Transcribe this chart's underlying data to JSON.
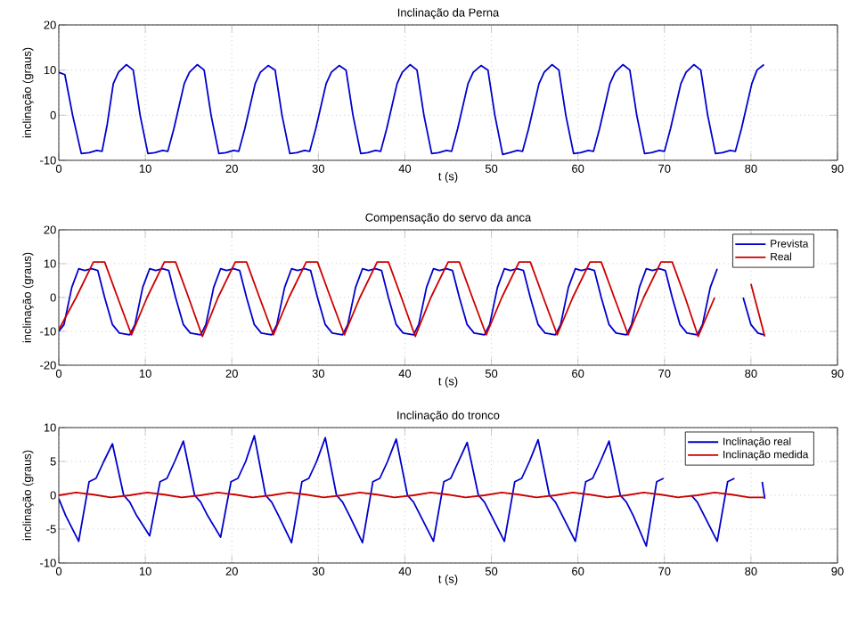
{
  "chart_data": [
    {
      "type": "line",
      "title": "Inclinação da Perna",
      "xlabel": "t (s)",
      "ylabel": "inclinação (graus)",
      "xlim": [
        0,
        90
      ],
      "ylim": [
        -10,
        20
      ],
      "xticks": [
        0,
        10,
        20,
        30,
        40,
        50,
        60,
        70,
        80,
        90
      ],
      "yticks": [
        -10,
        0,
        10,
        20
      ],
      "grid": true,
      "legend": false,
      "series": [
        {
          "color": "#0000cc",
          "x": [
            0,
            0.7,
            1.6,
            2.6,
            3.5,
            4.4,
            5.0,
            5.6,
            6.3,
            6.9,
            7.8,
            8.6,
            9.4,
            10.3,
            11.1,
            12.0,
            12.6,
            13.3,
            14.5,
            15.1,
            16.0,
            16.8,
            17.6,
            18.5,
            19.3,
            20.2,
            20.8,
            21.5,
            22.7,
            23.3,
            24.2,
            25.0,
            25.8,
            26.7,
            27.5,
            28.4,
            29.0,
            29.7,
            30.9,
            31.5,
            32.4,
            33.2,
            34.0,
            34.9,
            35.7,
            36.6,
            37.2,
            37.9,
            39.1,
            39.7,
            40.6,
            41.4,
            42.2,
            43.1,
            43.9,
            44.8,
            45.4,
            46.1,
            47.3,
            47.9,
            48.8,
            49.6,
            50.4,
            51.3,
            52.1,
            53.0,
            53.6,
            54.3,
            55.5,
            56.1,
            57.0,
            57.8,
            58.6,
            59.5,
            60.3,
            61.2,
            61.8,
            62.5,
            63.7,
            64.3,
            65.2,
            66.0,
            66.8,
            67.7,
            68.5,
            69.4,
            70.0,
            70.7,
            71.9,
            72.5,
            73.4,
            74.2,
            75.0,
            75.9,
            76.7,
            77.6,
            78.2,
            78.9,
            80.1,
            80.7,
            81.5
          ],
          "values": [
            9.5,
            9,
            0,
            -8.5,
            -8.3,
            -7.8,
            -8,
            -2,
            7,
            9.5,
            11.2,
            10,
            0,
            -8.5,
            -8.3,
            -7.8,
            -8,
            -3,
            7,
            9.5,
            11.2,
            10,
            0,
            -8.5,
            -8.3,
            -7.8,
            -8,
            -3,
            7,
            9.5,
            11,
            10,
            0,
            -8.5,
            -8.3,
            -7.8,
            -8,
            -3,
            7,
            9.5,
            11,
            10,
            0,
            -8.5,
            -8.3,
            -7.8,
            -8,
            -3,
            7,
            9.5,
            11.2,
            10,
            0,
            -8.5,
            -8.3,
            -7.8,
            -8,
            -3,
            7,
            9.5,
            11,
            10,
            0,
            -8.7,
            -8.3,
            -7.8,
            -8,
            -3,
            7,
            9.5,
            11.2,
            10,
            0,
            -8.5,
            -8.3,
            -7.8,
            -8,
            -3,
            7,
            9.5,
            11.2,
            10,
            0,
            -8.5,
            -8.3,
            -7.8,
            -8,
            -3,
            7,
            9.5,
            11.2,
            10,
            0,
            -8.5,
            -8.3,
            -7.8,
            -8,
            -3,
            7,
            10,
            11.2
          ]
        }
      ]
    },
    {
      "type": "line",
      "title": "Compensação do servo da anca",
      "xlabel": "t (s)",
      "ylabel": "inclinação (graus)",
      "xlim": [
        0,
        90
      ],
      "ylim": [
        -20,
        20
      ],
      "xticks": [
        0,
        10,
        20,
        30,
        40,
        50,
        60,
        70,
        80,
        90
      ],
      "yticks": [
        -20,
        -10,
        0,
        10,
        20
      ],
      "grid": true,
      "legend": "top right",
      "series": [
        {
          "name": "Prevista",
          "color": "#0000cc",
          "x": [
            0,
            0.6,
            1.5,
            2.3,
            3,
            3.8,
            4.5,
            5.3,
            6.2,
            7,
            8.2,
            8.8,
            9.7,
            10.5,
            11.2,
            12,
            12.7,
            13.5,
            14.4,
            15.2,
            16.4,
            17,
            17.9,
            18.7,
            19.4,
            20.2,
            20.9,
            21.7,
            22.6,
            23.4,
            24.6,
            25.2,
            26.1,
            26.9,
            27.6,
            28.4,
            29.1,
            29.9,
            30.8,
            31.6,
            32.8,
            33.4,
            34.3,
            35.1,
            35.8,
            36.6,
            37.3,
            38.1,
            39,
            39.8,
            41,
            41.6,
            42.5,
            43.3,
            44,
            44.8,
            45.5,
            46.3,
            47.2,
            48,
            49.2,
            49.8,
            50.7,
            51.5,
            52.2,
            53,
            53.7,
            54.5,
            55.4,
            56.2,
            57.4,
            58,
            58.9,
            59.7,
            60.4,
            61.2,
            61.9,
            62.7,
            63.6,
            64.4,
            65.6,
            66.2,
            67.1,
            67.9,
            68.6,
            69.4,
            70.1,
            70.9,
            71.8,
            72.6,
            73.8,
            74.4,
            75.3,
            76.1,
            76.8,
            77.6,
            78.3,
            79.1,
            80,
            80.8,
            81.5
          ],
          "values": [
            -10,
            -8,
            3,
            8.5,
            8,
            8.5,
            8,
            0,
            -8,
            -10.5,
            -11,
            -8,
            3,
            8.5,
            8,
            8.5,
            8,
            0,
            -8,
            -10.5,
            -11,
            -8,
            3,
            8.5,
            8,
            8.5,
            8,
            0,
            -8,
            -10.5,
            -11,
            -8,
            3,
            8.5,
            8,
            8.5,
            8,
            0,
            -8,
            -10.5,
            -11,
            -8,
            3,
            8.5,
            8,
            8.5,
            8,
            0,
            -8,
            -10.5,
            -11,
            -8,
            3,
            8.5,
            8,
            8.5,
            8,
            0,
            -8,
            -10.5,
            -11,
            -8,
            3,
            8.5,
            8,
            8.5,
            8,
            0,
            -8,
            -10.5,
            -11,
            -8,
            3,
            8.5,
            8,
            8.5,
            8,
            0,
            -8,
            -10.5,
            -11,
            -8,
            3,
            8.5,
            8,
            8.5,
            8,
            0,
            -8,
            -10.5,
            -11,
            -8,
            3,
            8.5,
            null,
            null,
            null,
            0,
            -8,
            -10.5,
            -11
          ]
        },
        {
          "name": "Real",
          "color": "#cc0000",
          "x": [
            0,
            2,
            4,
            5.3,
            6.8,
            8.4,
            10.2,
            12.2,
            13.5,
            15,
            16.6,
            18.4,
            20.4,
            21.7,
            23.2,
            24.8,
            26.6,
            28.6,
            29.9,
            31.4,
            33,
            34.8,
            36.8,
            38.1,
            39.6,
            41.2,
            43,
            45,
            46.3,
            47.8,
            49.4,
            51.2,
            53.2,
            54.5,
            56,
            57.6,
            59.4,
            61.4,
            62.7,
            64.2,
            65.8,
            67.6,
            69.6,
            70.9,
            72.4,
            73.9,
            75.8,
            77.8,
            79.1,
            80,
            81.6
          ],
          "values": [
            -9.5,
            0,
            10.5,
            10.5,
            0,
            -11,
            0,
            10.5,
            10.5,
            0,
            -11.5,
            0,
            10.5,
            10.5,
            0,
            -11,
            0,
            10.5,
            10.5,
            0,
            -11,
            0,
            10.5,
            10.5,
            0,
            -11.5,
            0,
            10.5,
            10.5,
            0,
            -11,
            0,
            10.5,
            10.5,
            0,
            -11,
            0,
            10.5,
            10.5,
            0,
            -11,
            0,
            10.5,
            10.5,
            0,
            -11.5,
            0,
            null,
            null,
            4,
            -11.5
          ]
        }
      ]
    },
    {
      "type": "line",
      "title": "Inclinação do tronco",
      "xlabel": "t (s)",
      "ylabel": "inclinação (graus)",
      "xlim": [
        0,
        90
      ],
      "ylim": [
        -10,
        10
      ],
      "xticks": [
        0,
        10,
        20,
        30,
        40,
        50,
        60,
        70,
        80,
        90
      ],
      "yticks": [
        -10,
        -5,
        0,
        5,
        10
      ],
      "grid": true,
      "legend": "top right",
      "series": [
        {
          "name": "Inclinação real",
          "color": "#0000cc",
          "x": [
            0,
            0.8,
            2.3,
            3.5,
            4.3,
            5.2,
            6.2,
            7.5,
            8.2,
            9,
            10.5,
            11.7,
            12.5,
            13.4,
            14.4,
            15.7,
            16.4,
            17.2,
            18.7,
            19.9,
            20.7,
            21.6,
            22.6,
            23.9,
            24.6,
            25.4,
            26.9,
            28.1,
            28.9,
            29.8,
            30.8,
            32.1,
            32.8,
            33.6,
            35.1,
            36.3,
            37.1,
            38,
            39,
            40.3,
            41,
            41.8,
            43.3,
            44.5,
            45.3,
            46.2,
            47.2,
            48.5,
            49.2,
            50,
            51.5,
            52.7,
            53.5,
            54.4,
            55.4,
            56.7,
            57.4,
            58.2,
            59.7,
            60.9,
            61.7,
            62.6,
            63.6,
            64.9,
            65.6,
            66.4,
            67.9,
            69.1,
            69.9,
            70.8,
            71.8,
            73.1,
            73.8,
            74.6,
            76.1,
            77.3,
            78.1,
            79,
            80,
            81.3,
            81.6
          ],
          "values": [
            -0.5,
            -3,
            -6.8,
            2,
            2.5,
            5,
            7.6,
            0,
            -1,
            -3,
            -6,
            2,
            2.5,
            5,
            8,
            0,
            -1,
            -3,
            -6.2,
            2,
            2.5,
            5,
            8.8,
            0,
            -1,
            -3,
            -7,
            2,
            2.5,
            5,
            8.5,
            0,
            -1,
            -3,
            -7,
            2,
            2.5,
            5,
            8.3,
            0,
            -1,
            -3,
            -6.8,
            2,
            2.5,
            5,
            7.8,
            0,
            -1,
            -3,
            -6.8,
            2,
            2.5,
            5,
            8.2,
            0,
            -1,
            -3,
            -6.8,
            2,
            2.5,
            5,
            8,
            0,
            -1,
            -3,
            -7.5,
            2,
            2.5,
            null,
            null,
            0,
            -1,
            -3,
            -6.8,
            2,
            2.5,
            null,
            null,
            2,
            -0.5
          ]
        },
        {
          "name": "Inclinação medida",
          "color": "#cc0000",
          "x": [
            0,
            2,
            4,
            6,
            8.2,
            10.2,
            12.2,
            14.2,
            16.4,
            18.4,
            20.4,
            22.4,
            24.6,
            26.6,
            28.6,
            30.6,
            32.8,
            34.8,
            36.8,
            38.8,
            41,
            43,
            45,
            47,
            49.2,
            51.2,
            53.2,
            55.2,
            57.4,
            59.4,
            61.4,
            63.4,
            65.6,
            67.6,
            69.6,
            71.6,
            73.8,
            75.8,
            77.8,
            79.8,
            81.5
          ],
          "values": [
            0,
            0.4,
            0.1,
            -0.3,
            0,
            0.4,
            0.1,
            -0.3,
            0,
            0.4,
            0.1,
            -0.3,
            0,
            0.4,
            0.1,
            -0.3,
            0,
            0.4,
            0.1,
            -0.3,
            0,
            0.4,
            0.1,
            -0.3,
            0,
            0.4,
            0.1,
            -0.3,
            0,
            0.4,
            0.1,
            -0.3,
            0,
            0.4,
            0.1,
            -0.3,
            0,
            0.4,
            0.1,
            -0.3,
            -0.3
          ]
        }
      ]
    }
  ]
}
